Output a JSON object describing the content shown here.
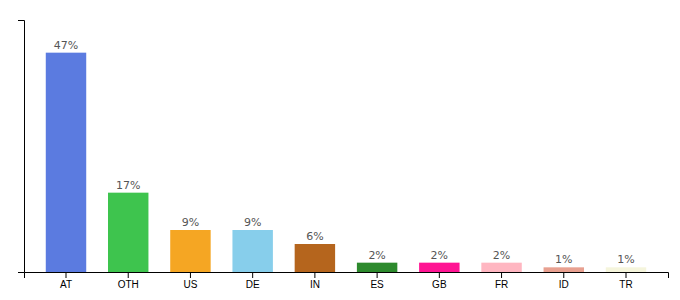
{
  "chart_data": {
    "type": "bar",
    "categories": [
      "AT",
      "OTH",
      "US",
      "DE",
      "IN",
      "ES",
      "GB",
      "FR",
      "ID",
      "TR"
    ],
    "values": [
      47,
      17,
      9,
      9,
      6,
      2,
      2,
      2,
      1,
      1
    ],
    "value_labels": [
      "47%",
      "17%",
      "9%",
      "9%",
      "6%",
      "2%",
      "2%",
      "2%",
      "1%",
      "1%"
    ],
    "colors": [
      "#5b7be0",
      "#3ec44e",
      "#f5a623",
      "#87ceeb",
      "#b5651d",
      "#2d8a2d",
      "#ff1493",
      "#ffb6c1",
      "#e8a090",
      "#f5f5dc"
    ],
    "ylim": [
      0,
      54
    ],
    "data_labels": true,
    "tick_labels": "x"
  }
}
